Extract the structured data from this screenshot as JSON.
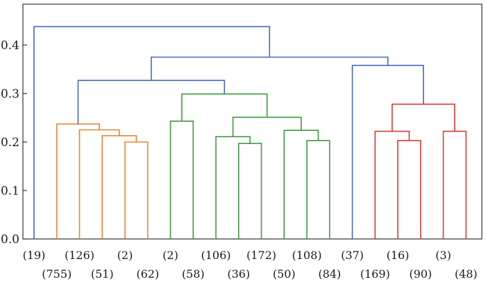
{
  "chart_data": {
    "type": "dendrogram",
    "yticks": [
      "0.0",
      "0.1",
      "0.2",
      "0.3",
      "0.4"
    ],
    "ylim": [
      0.0,
      0.47
    ],
    "grid": false,
    "legend": "none",
    "leaves": [
      "(19)",
      "(755)",
      "(126)",
      "(51)",
      "(2)",
      "(62)",
      "(2)",
      "(58)",
      "(106)",
      "(36)",
      "(172)",
      "(50)",
      "(108)",
      "(84)",
      "(37)",
      "(169)",
      "(16)",
      "(90)",
      "(3)",
      "(48)"
    ],
    "colors": {
      "above_threshold": "#4169b8",
      "cluster_1": "#e8832e",
      "cluster_2": "#3c9a3c",
      "cluster_3": "#d63b32"
    },
    "merges": [
      {
        "left": 4,
        "right": 5,
        "height": 0.2,
        "color": "cluster_1"
      },
      {
        "left": 3,
        "right": 20,
        "height": 0.213,
        "color": "cluster_1"
      },
      {
        "left": 2,
        "right": 21,
        "height": 0.225,
        "color": "cluster_1"
      },
      {
        "left": 1,
        "right": 22,
        "height": 0.237,
        "color": "cluster_1"
      },
      {
        "left": 6,
        "right": 7,
        "height": 0.243,
        "color": "cluster_2"
      },
      {
        "left": 9,
        "right": 10,
        "height": 0.197,
        "color": "cluster_2"
      },
      {
        "left": 8,
        "right": 25,
        "height": 0.211,
        "color": "cluster_2"
      },
      {
        "left": 12,
        "right": 13,
        "height": 0.203,
        "color": "cluster_2"
      },
      {
        "left": 11,
        "right": 27,
        "height": 0.224,
        "color": "cluster_2"
      },
      {
        "left": 26,
        "right": 28,
        "height": 0.251,
        "color": "cluster_2"
      },
      {
        "left": 24,
        "right": 29,
        "height": 0.299,
        "color": "cluster_2"
      },
      {
        "left": 23,
        "right": 30,
        "height": 0.327,
        "color": "above_threshold"
      },
      {
        "left": 16,
        "right": 17,
        "height": 0.203,
        "color": "cluster_3"
      },
      {
        "left": 15,
        "right": 32,
        "height": 0.222,
        "color": "cluster_3"
      },
      {
        "left": 18,
        "right": 19,
        "height": 0.222,
        "color": "cluster_3"
      },
      {
        "left": 33,
        "right": 34,
        "height": 0.278,
        "color": "cluster_3"
      },
      {
        "left": 14,
        "right": 35,
        "height": 0.358,
        "color": "above_threshold"
      },
      {
        "left": 31,
        "right": 36,
        "height": 0.375,
        "color": "above_threshold"
      },
      {
        "left": 0,
        "right": 37,
        "height": 0.438,
        "color": "above_threshold"
      }
    ]
  }
}
